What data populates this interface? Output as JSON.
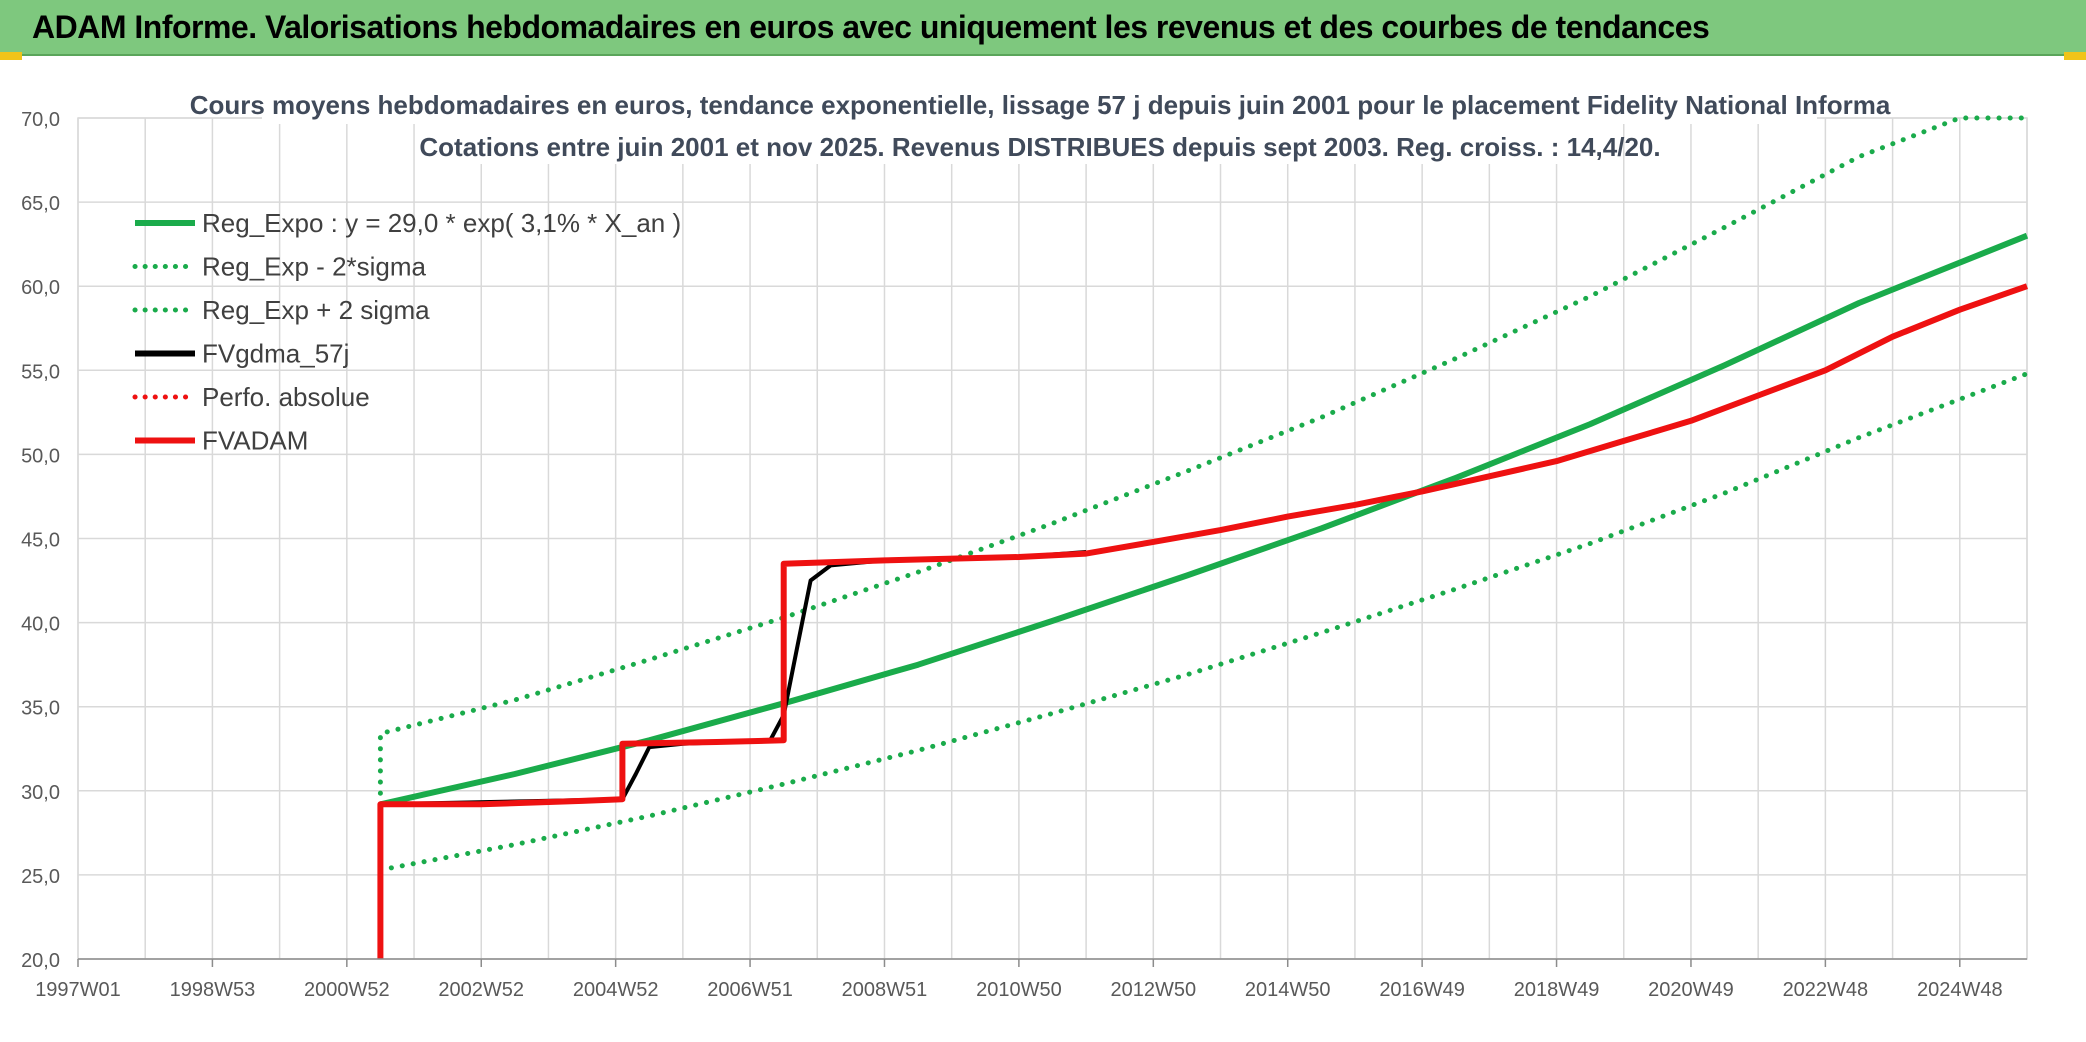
{
  "banner": {
    "title": "ADAM Informe. Valorisations hebdomadaires en euros avec uniquement les revenus et des courbes de tendances"
  },
  "colors": {
    "banner_bg": "#7ec87e",
    "green": "#1aab4b",
    "red": "#ee1111",
    "black": "#000000",
    "grid": "#d9d9d9"
  },
  "chart_data": {
    "type": "line",
    "title": "Cours moyens hebdomadaires en euros, tendance exponentielle, lissage 57 j depuis juin 2001 pour le placement Fidelity National Informa",
    "subtitle": "Cotations entre juin 2001 et nov 2025. Revenus DISTRIBUES depuis sept 2003. Reg. croiss. : 14,4/20.",
    "xlabel": "",
    "ylabel": "",
    "ylim": [
      20,
      70
    ],
    "xlim": [
      1997.0,
      2026.0
    ],
    "y_ticks": [
      "20,0",
      "25,0",
      "30,0",
      "35,0",
      "40,0",
      "45,0",
      "50,0",
      "55,0",
      "60,0",
      "65,0",
      "70,0"
    ],
    "x_tick_labels": [
      "1997W01",
      "1998W53",
      "2000W52",
      "2002W52",
      "2004W52",
      "2006W51",
      "2008W51",
      "2010W50",
      "2012W50",
      "2014W50",
      "2016W49",
      "2018W49",
      "2020W49",
      "2022W48",
      "2024W48"
    ],
    "x_tick_years": [
      1997,
      1999,
      2001,
      2003,
      2005,
      2007,
      2009,
      2011,
      2013,
      2015,
      2017,
      2019,
      2021,
      2023,
      2025
    ],
    "grid": true,
    "legend_position": "top-left",
    "series": [
      {
        "name": "Reg_Expo : y = 29,0 * exp( 3,1% *  X_an )",
        "color": "#1aab4b",
        "style": "solid",
        "width": 6,
        "points": [
          [
            2001.5,
            29.2
          ],
          [
            2003.5,
            31.0
          ],
          [
            2005.5,
            33.0
          ],
          [
            2007.5,
            35.2
          ],
          [
            2009.5,
            37.5
          ],
          [
            2011.5,
            40.1
          ],
          [
            2013.5,
            42.8
          ],
          [
            2015.5,
            45.6
          ],
          [
            2017.5,
            48.6
          ],
          [
            2019.5,
            51.8
          ],
          [
            2021.5,
            55.3
          ],
          [
            2023.5,
            59.0
          ],
          [
            2026.0,
            63.0
          ]
        ]
      },
      {
        "name": "Reg_Exp - 2*sigma",
        "color": "#1aab4b",
        "style": "dotted",
        "width": 5,
        "points": [
          [
            2001.5,
            25.3
          ],
          [
            2003.5,
            26.8
          ],
          [
            2005.5,
            28.5
          ],
          [
            2007.5,
            30.4
          ],
          [
            2009.5,
            32.4
          ],
          [
            2011.5,
            34.6
          ],
          [
            2013.5,
            36.9
          ],
          [
            2015.5,
            39.4
          ],
          [
            2017.5,
            42.0
          ],
          [
            2019.5,
            44.7
          ],
          [
            2021.5,
            47.7
          ],
          [
            2023.5,
            51.0
          ],
          [
            2026.0,
            54.8
          ]
        ]
      },
      {
        "name": "Reg_Exp + 2 sigma",
        "color": "#1aab4b",
        "style": "dotted",
        "width": 5,
        "points": [
          [
            2001.5,
            29.2
          ],
          [
            2001.5,
            33.4
          ],
          [
            2003.5,
            35.4
          ],
          [
            2005.5,
            37.8
          ],
          [
            2007.5,
            40.3
          ],
          [
            2009.5,
            43.0
          ],
          [
            2011.5,
            45.9
          ],
          [
            2013.5,
            49.0
          ],
          [
            2015.5,
            52.2
          ],
          [
            2017.5,
            55.7
          ],
          [
            2019.5,
            59.4
          ],
          [
            2021.5,
            63.5
          ],
          [
            2023.5,
            67.7
          ],
          [
            2025.0,
            70.0
          ],
          [
            2026.0,
            70.0
          ]
        ]
      },
      {
        "name": "FVgdma_57j",
        "color": "#000000",
        "style": "solid",
        "width": 4,
        "points": [
          [
            2001.5,
            20.0
          ],
          [
            2001.5,
            29.2
          ],
          [
            2005.1,
            29.5
          ],
          [
            2005.3,
            31.0
          ],
          [
            2005.5,
            32.6
          ],
          [
            2006.0,
            32.8
          ],
          [
            2007.3,
            33.0
          ],
          [
            2007.5,
            34.5
          ],
          [
            2007.7,
            38.5
          ],
          [
            2007.9,
            42.5
          ],
          [
            2008.2,
            43.4
          ],
          [
            2009.0,
            43.7
          ],
          [
            2011.0,
            43.9
          ],
          [
            2012.0,
            44.2
          ]
        ]
      },
      {
        "name": "Perfo. absolue",
        "color": "#ee1111",
        "style": "dotted",
        "width": 4,
        "points": []
      },
      {
        "name": "FVADAM",
        "color": "#ee1111",
        "style": "solid",
        "width": 6,
        "points": [
          [
            2001.5,
            20.0
          ],
          [
            2001.5,
            29.2
          ],
          [
            2003.0,
            29.2
          ],
          [
            2004.5,
            29.4
          ],
          [
            2005.1,
            29.5
          ],
          [
            2005.1,
            32.8
          ],
          [
            2006.5,
            32.9
          ],
          [
            2007.5,
            33.0
          ],
          [
            2007.5,
            43.5
          ],
          [
            2009.0,
            43.7
          ],
          [
            2011.0,
            43.9
          ],
          [
            2012.0,
            44.1
          ],
          [
            2013.0,
            44.8
          ],
          [
            2014.0,
            45.5
          ],
          [
            2015.0,
            46.3
          ],
          [
            2016.0,
            47.0
          ],
          [
            2017.0,
            47.8
          ],
          [
            2018.0,
            48.7
          ],
          [
            2019.0,
            49.6
          ],
          [
            2020.0,
            50.8
          ],
          [
            2021.0,
            52.0
          ],
          [
            2022.0,
            53.5
          ],
          [
            2023.0,
            55.0
          ],
          [
            2024.0,
            57.0
          ],
          [
            2025.0,
            58.6
          ],
          [
            2026.0,
            60.0
          ]
        ]
      }
    ]
  }
}
